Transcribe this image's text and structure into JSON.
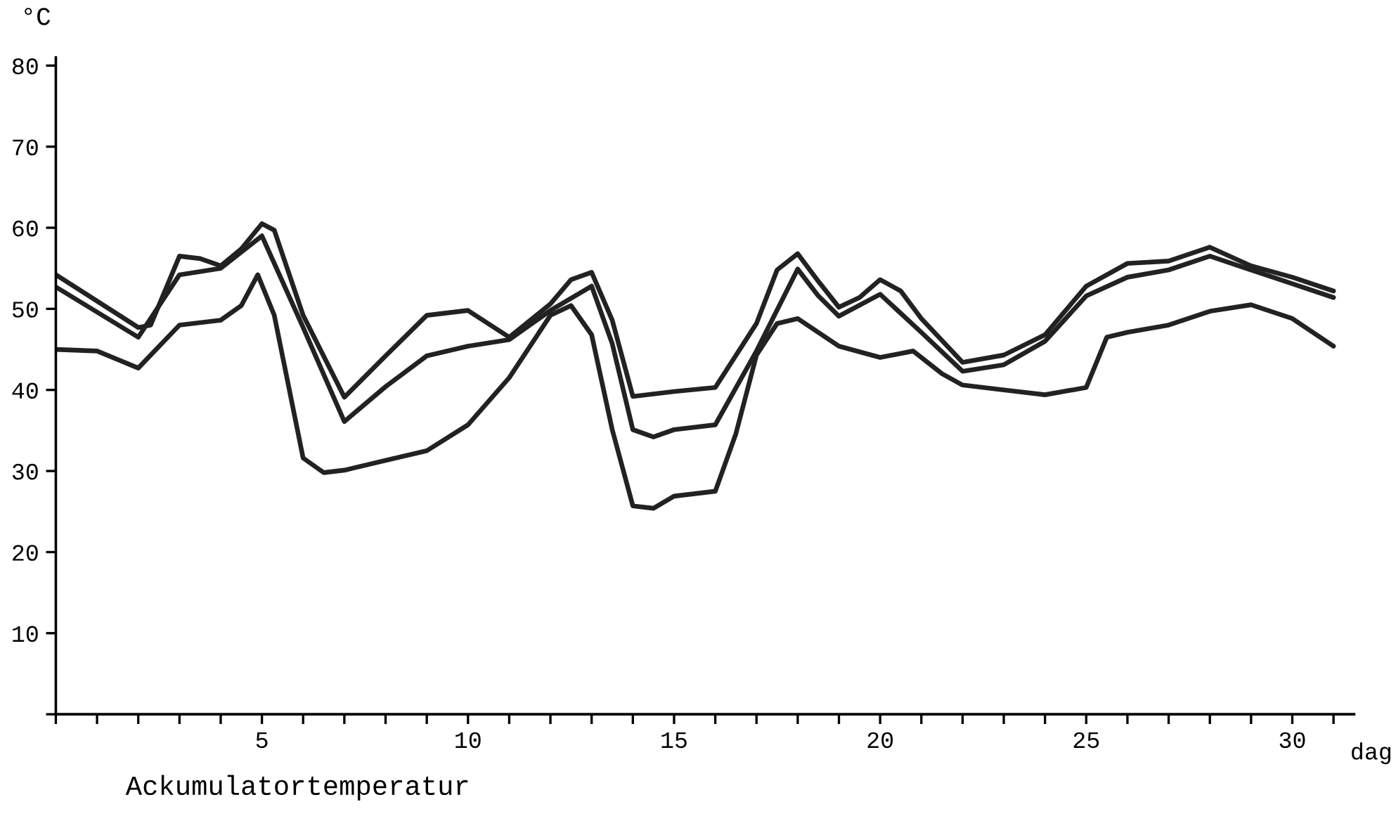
{
  "chart_data": {
    "type": "line",
    "title": "Ackumulatortemperatur",
    "xlabel": "dag",
    "ylabel": "°C",
    "xlim": [
      0,
      31.5
    ],
    "ylim": [
      0,
      81
    ],
    "xticks": [
      {
        "value": 0,
        "label": null
      },
      {
        "value": 1,
        "label": null
      },
      {
        "value": 2,
        "label": null
      },
      {
        "value": 3,
        "label": null
      },
      {
        "value": 4,
        "label": null
      },
      5,
      {
        "value": 6,
        "label": null
      },
      {
        "value": 7,
        "label": null
      },
      {
        "value": 8,
        "label": null
      },
      {
        "value": 9,
        "label": null
      },
      10,
      {
        "value": 11,
        "label": null
      },
      {
        "value": 12,
        "label": null
      },
      {
        "value": 13,
        "label": null
      },
      {
        "value": 14,
        "label": null
      },
      15,
      {
        "value": 16,
        "label": null
      },
      {
        "value": 17,
        "label": null
      },
      {
        "value": 18,
        "label": null
      },
      {
        "value": 19,
        "label": null
      },
      20,
      {
        "value": 21,
        "label": null
      },
      {
        "value": 22,
        "label": null
      },
      {
        "value": 23,
        "label": null
      },
      {
        "value": 24,
        "label": null
      },
      25,
      {
        "value": 26,
        "label": null
      },
      {
        "value": 27,
        "label": null
      },
      {
        "value": 28,
        "label": null
      },
      {
        "value": 29,
        "label": null
      },
      30,
      {
        "value": 31,
        "label": null
      }
    ],
    "yticks": [
      {
        "value": 0,
        "label": null
      },
      10,
      20,
      30,
      40,
      50,
      60,
      70,
      80
    ],
    "grid": false,
    "legend": false,
    "marker": "none",
    "line_style": "solid",
    "series": [
      {
        "color": "#222222",
        "x": [
          0,
          2,
          2.3,
          3,
          3.5,
          4,
          4.5,
          5,
          5.3,
          6,
          7,
          8,
          9,
          10,
          11,
          12,
          12.5,
          13,
          13.5,
          14,
          15,
          16,
          17,
          17.5,
          18,
          18.5,
          19,
          19.5,
          20,
          20.5,
          21,
          22,
          23,
          24,
          25,
          26,
          27,
          28,
          29,
          30,
          31
        ],
        "values": [
          54.2,
          47.7,
          48,
          56.5,
          56.2,
          55.3,
          57.4,
          60.5,
          59.7,
          49.2,
          39.1,
          44.2,
          49.2,
          49.8,
          46.5,
          50.6,
          53.6,
          54.5,
          48.6,
          39.2,
          39.8,
          40.3,
          48.2,
          54.8,
          56.8,
          53.4,
          50.2,
          51.4,
          53.6,
          52.2,
          48.8,
          43.4,
          44.3,
          46.8,
          52.8,
          55.6,
          55.9,
          57.6,
          55.3,
          53.9,
          52.2
        ]
      },
      {
        "color": "#222222",
        "x": [
          0,
          2,
          3,
          4,
          5,
          6,
          7,
          8,
          9,
          10,
          11,
          12,
          13,
          13.5,
          14,
          14.5,
          15,
          16,
          17,
          18,
          18.5,
          19,
          20,
          21,
          22,
          23,
          24,
          25,
          26,
          27,
          28,
          29,
          30,
          31
        ],
        "values": [
          52.7,
          46.5,
          54.2,
          55,
          59,
          47.7,
          36.1,
          40.4,
          44.2,
          45.4,
          46.2,
          49.8,
          52.8,
          45.7,
          35.1,
          34.2,
          35.1,
          35.7,
          44.8,
          54.9,
          51.6,
          49.1,
          51.8,
          47.1,
          42.3,
          43.1,
          46,
          51.6,
          53.9,
          54.8,
          56.5,
          54.8,
          53.1,
          51.4
        ]
      },
      {
        "color": "#222222",
        "x": [
          0,
          1,
          2,
          3,
          4,
          4.5,
          4.9,
          5.3,
          6,
          6.5,
          7,
          8,
          9,
          10,
          11,
          12,
          12.5,
          13,
          13.5,
          14,
          14.5,
          15,
          16,
          16.5,
          17,
          17.5,
          18,
          19,
          20,
          20.8,
          21.5,
          22,
          23,
          24,
          25,
          25.5,
          26,
          27,
          28,
          29,
          30,
          31
        ],
        "values": [
          45,
          44.8,
          42.7,
          48,
          48.6,
          50.4,
          54.2,
          49.2,
          31.6,
          29.8,
          30.1,
          31.3,
          32.5,
          35.7,
          41.5,
          49.2,
          50.4,
          46.8,
          35.1,
          25.7,
          25.4,
          26.9,
          27.5,
          34.6,
          44.3,
          48.2,
          48.8,
          45.4,
          44,
          44.8,
          42,
          40.6,
          40,
          39.4,
          40.3,
          46.5,
          47.1,
          48,
          49.7,
          50.5,
          48.8,
          45.4
        ]
      }
    ]
  }
}
